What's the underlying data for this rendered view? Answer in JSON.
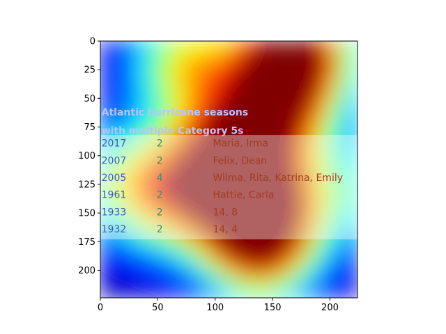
{
  "chart_data": {
    "type": "heatmap",
    "title": "",
    "xlabel": "",
    "ylabel": "",
    "colormap": "jet",
    "overlay": "saliency heatmap over a table image",
    "xlim": [
      0,
      224
    ],
    "ylim": [
      224,
      0
    ],
    "x_ticks": [
      {
        "value": 0,
        "label": "0"
      },
      {
        "value": 50,
        "label": "50"
      },
      {
        "value": 100,
        "label": "100"
      },
      {
        "value": 150,
        "label": "150"
      },
      {
        "value": 200,
        "label": "200"
      }
    ],
    "y_ticks": [
      {
        "value": 0,
        "label": "0"
      },
      {
        "value": 25,
        "label": "25"
      },
      {
        "value": 50,
        "label": "50"
      },
      {
        "value": 75,
        "label": "75"
      },
      {
        "value": 100,
        "label": "100"
      },
      {
        "value": 125,
        "label": "125"
      },
      {
        "value": 150,
        "label": "150"
      },
      {
        "value": 175,
        "label": "175"
      },
      {
        "value": 200,
        "label": "200"
      }
    ],
    "heat_spots": [
      {
        "x": 170,
        "y": 10,
        "intensity": 1.0
      },
      {
        "x": 130,
        "y": 130,
        "intensity": 0.95
      },
      {
        "x": 150,
        "y": 60,
        "intensity": 0.75
      },
      {
        "x": 140,
        "y": 175,
        "intensity": 0.9
      },
      {
        "x": 75,
        "y": 20,
        "intensity": 0.55
      },
      {
        "x": 60,
        "y": 140,
        "intensity": 0.45
      },
      {
        "x": 20,
        "y": 120,
        "intensity": 0.35
      },
      {
        "x": 215,
        "y": 130,
        "intensity": 0.3
      },
      {
        "x": 100,
        "y": 100,
        "intensity": 0.55
      }
    ],
    "embedded_image": {
      "heading_lines": [
        "Atlantic hurricane seasons",
        "with multiple Category 5s"
      ],
      "table_y_range": [
        82,
        173
      ],
      "rows": [
        {
          "year": "2017",
          "count": "2",
          "names": "Maria, Irma"
        },
        {
          "year": "2007",
          "count": "2",
          "names": "Felix, Dean"
        },
        {
          "year": "2005",
          "count": "4",
          "names": "Wilma, Rita, Katrina, Emily"
        },
        {
          "year": "1961",
          "count": "2",
          "names": "Hattie, Carla"
        },
        {
          "year": "1933",
          "count": "2",
          "names": "14, 8"
        },
        {
          "year": "1932",
          "count": "2",
          "names": "14, 4"
        }
      ],
      "colors": {
        "heading": "#b8c4ff",
        "year": "#3a56c8",
        "count": "#3c8f6a",
        "names": "#a33c20",
        "band": "#ffffff"
      }
    }
  }
}
